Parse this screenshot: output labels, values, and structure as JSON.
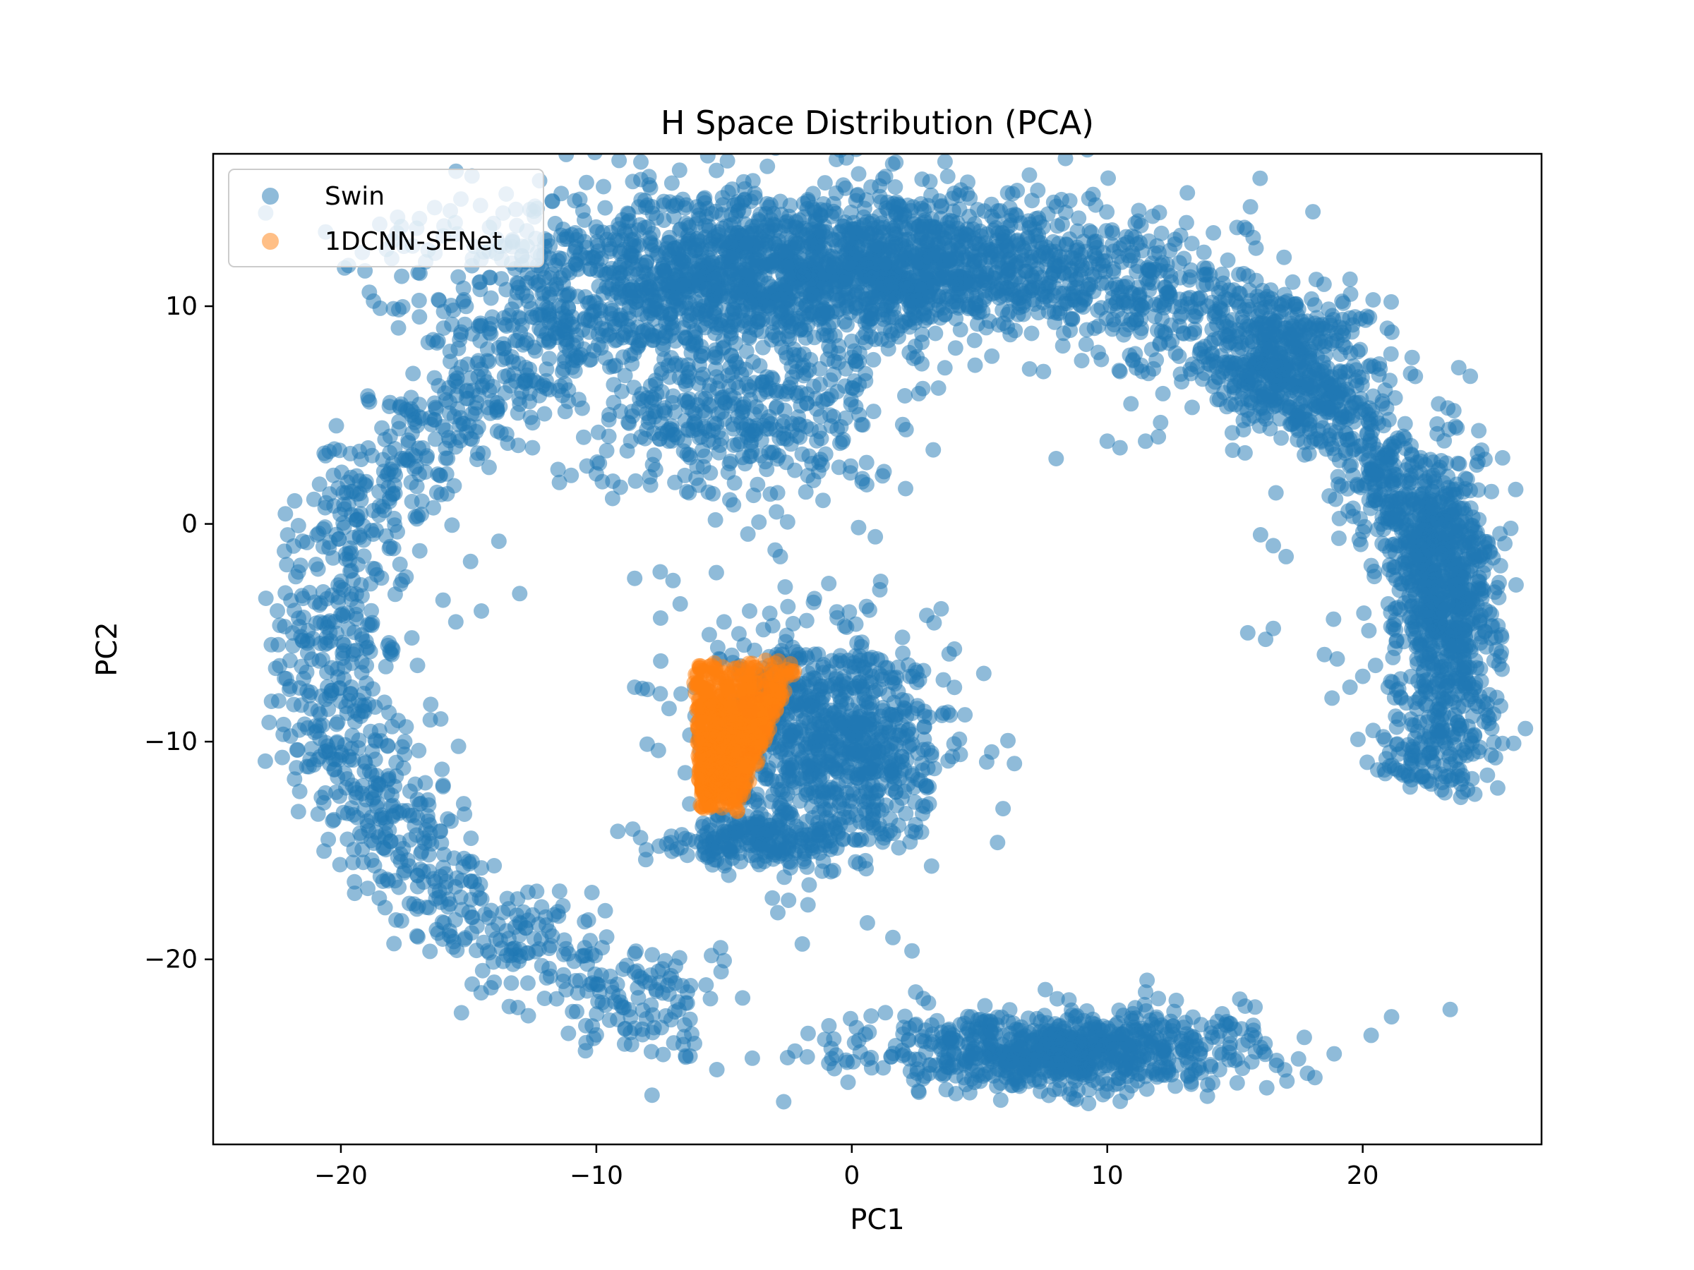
{
  "chart_data": {
    "type": "scatter",
    "title": "H Space Distribution (PCA)",
    "xlabel": "PC1",
    "ylabel": "PC2",
    "xlim": [
      -25,
      27
    ],
    "ylim": [
      -28.5,
      17
    ],
    "xticks": [
      -20,
      -10,
      0,
      10,
      20
    ],
    "yticks": [
      10,
      0,
      -10,
      -20
    ],
    "xtick_labels": [
      "−20",
      "−10",
      "0",
      "10",
      "20"
    ],
    "ytick_labels": [
      "10",
      "0",
      "−10",
      "−20"
    ],
    "legend_position": "top-left",
    "grid": false,
    "series": [
      {
        "name": "Swin",
        "color": "#1f77b4",
        "alpha": 0.5,
        "clusters": [
          {
            "shape": "arc",
            "center": [
              2.0,
              -6.0
            ],
            "rx": 22.5,
            "ry": 18.0,
            "angle_start_deg": 40,
            "angle_end_deg": 250,
            "thickness": 2.6,
            "n": 1700
          },
          {
            "shape": "arc",
            "center": [
              2.0,
              -6.0
            ],
            "rx": 21.5,
            "ry": 17.5,
            "angle_start_deg": -20,
            "angle_end_deg": 50,
            "thickness": 2.2,
            "n": 900
          },
          {
            "shape": "blob",
            "center": [
              -4.5,
              11.5
            ],
            "sx": 6.0,
            "sy": 2.0,
            "n": 1300
          },
          {
            "shape": "blob",
            "center": [
              4.0,
              12.0
            ],
            "sx": 5.0,
            "sy": 1.6,
            "n": 700
          },
          {
            "shape": "blob",
            "center": [
              -4.5,
              5.0
            ],
            "sx": 3.0,
            "sy": 2.0,
            "n": 400
          },
          {
            "shape": "blob",
            "center": [
              -1.0,
              -10.0
            ],
            "sx": 2.4,
            "sy": 2.6,
            "n": 900
          },
          {
            "shape": "blob",
            "center": [
              -4.0,
              -14.5
            ],
            "sx": 1.8,
            "sy": 0.6,
            "n": 200
          },
          {
            "shape": "blob",
            "center": [
              8.0,
              -24.2
            ],
            "sx": 4.0,
            "sy": 0.9,
            "n": 800
          },
          {
            "shape": "blob",
            "center": [
              23.0,
              -2.0
            ],
            "sx": 1.0,
            "sy": 3.0,
            "n": 400
          },
          {
            "shape": "blob",
            "center": [
              16.5,
              8.0
            ],
            "sx": 2.0,
            "sy": 1.5,
            "n": 300
          }
        ],
        "outliers": [
          [
            -8.5,
            -2.5
          ],
          [
            -7.5,
            -2.2
          ],
          [
            -7.0,
            -2.6
          ],
          [
            -3.0,
            -1.2
          ],
          [
            -2.8,
            -1.5
          ],
          [
            -8.5,
            -7.5
          ],
          [
            -8.0,
            -7.6
          ],
          [
            -7.5,
            -7.8
          ],
          [
            -1.3,
            2.4
          ],
          [
            -0.5,
            2.6
          ],
          [
            -1.5,
            2.0
          ],
          [
            8.0,
            3.0
          ],
          [
            10.0,
            3.8
          ],
          [
            10.5,
            3.5
          ],
          [
            11.5,
            3.8
          ],
          [
            12.0,
            4.0
          ],
          [
            16.0,
            -0.5
          ],
          [
            16.5,
            -1.0
          ],
          [
            17.0,
            -1.5
          ],
          [
            15.5,
            -5.0
          ],
          [
            16.2,
            -5.3
          ],
          [
            16.5,
            -4.8
          ],
          [
            18.5,
            -6.0
          ],
          [
            19.0,
            -6.2
          ],
          [
            18.8,
            -8.0
          ],
          [
            19.5,
            -7.5
          ],
          [
            20.0,
            -7.0
          ],
          [
            20.5,
            -6.5
          ],
          [
            21.0,
            -7.5
          ],
          [
            21.5,
            -8.0
          ],
          [
            -14.5,
            -15.8
          ],
          [
            -15.0,
            -15.5
          ],
          [
            -14.0,
            -15.7
          ],
          [
            -13.0,
            -3.2
          ],
          [
            -14.5,
            -4.0
          ],
          [
            -15.5,
            -4.5
          ],
          [
            -16.0,
            -3.5
          ],
          [
            -17.0,
            -6.5
          ],
          [
            -18.0,
            -6.0
          ],
          [
            -16.5,
            -9.0
          ],
          [
            -17.5,
            -10.0
          ],
          [
            -16.0,
            -12.0
          ],
          [
            -17.0,
            -13.5
          ],
          [
            2.5,
            -21.5
          ],
          [
            2.8,
            -21.8
          ],
          [
            3.0,
            -22.0
          ],
          [
            11.5,
            -21.5
          ],
          [
            12.0,
            -21.8
          ],
          [
            14.5,
            -22.5
          ],
          [
            14.8,
            -23.5
          ],
          [
            0.8,
            -7.0
          ],
          [
            1.0,
            -6.2
          ],
          [
            1.2,
            -10.5
          ],
          [
            1.5,
            -11.5
          ],
          [
            -5.0,
            -4.5
          ],
          [
            -4.0,
            -4.0
          ],
          [
            -2.5,
            -3.8
          ],
          [
            -1.5,
            -3.6
          ],
          [
            7.5,
            7.0
          ],
          [
            9.0,
            7.5
          ],
          [
            10.5,
            7.0
          ],
          [
            11.0,
            7.5
          ],
          [
            -13.0,
            5.5
          ],
          [
            -12.5,
            3.5
          ],
          [
            -11.5,
            2.5
          ],
          [
            -10.0,
            2.3
          ]
        ]
      },
      {
        "name": "1DCNN-SENet",
        "color": "#ff7f0e",
        "alpha": 0.5,
        "clusters": [
          {
            "shape": "slanted-blob",
            "top_center": [
              -4.2,
              -6.6
            ],
            "bottom_center": [
              -5.2,
              -12.8
            ],
            "width_top": 4.0,
            "width_bottom": 1.5,
            "n": 700
          }
        ]
      }
    ]
  }
}
